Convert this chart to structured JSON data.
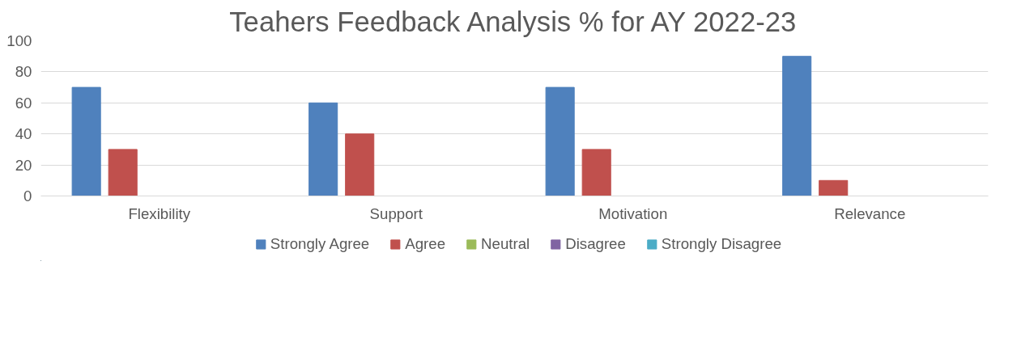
{
  "chart_data": {
    "type": "bar",
    "title": "Teahers Feedback Analysis % for AY 2022-23",
    "categories": [
      "Flexibility",
      "Support",
      "Motivation",
      "Relevance"
    ],
    "series": [
      {
        "name": "Strongly Agree",
        "color": "#4f81bd",
        "values": [
          70,
          60,
          70,
          90
        ]
      },
      {
        "name": "Agree",
        "color": "#c0504d",
        "values": [
          30,
          40,
          30,
          10
        ]
      },
      {
        "name": "Neutral",
        "color": "#9bbb59",
        "values": [
          0,
          0,
          0,
          0
        ]
      },
      {
        "name": "Disagree",
        "color": "#8064a2",
        "values": [
          0,
          0,
          0,
          0
        ]
      },
      {
        "name": "Strongly Disagree",
        "color": "#4bacc6",
        "values": [
          0,
          0,
          0,
          0
        ]
      }
    ],
    "ylim": [
      0,
      100
    ],
    "yticks": [
      0,
      20,
      40,
      60,
      80,
      100
    ],
    "grid": "y",
    "legend": "bottom"
  }
}
